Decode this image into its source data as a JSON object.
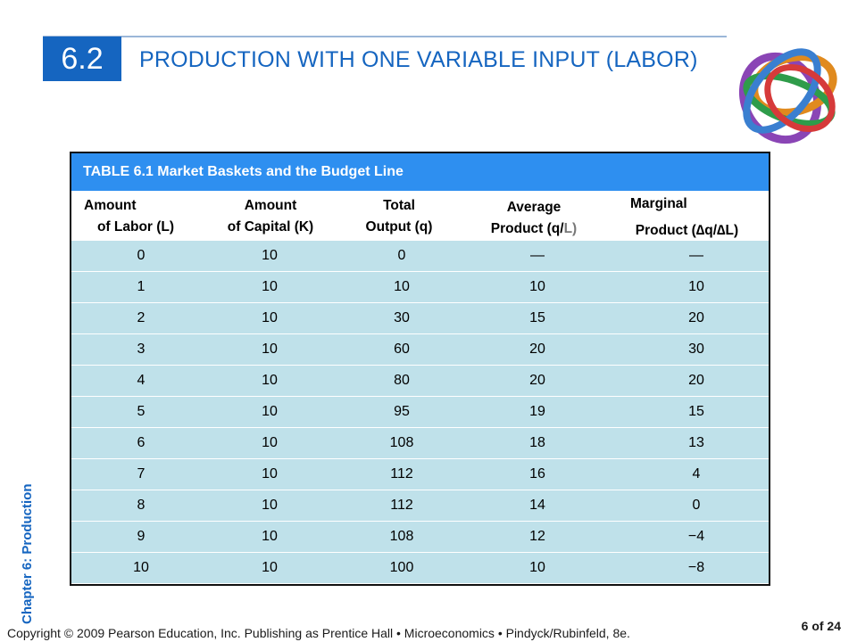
{
  "slide": {
    "section_number": "6.2",
    "title": "PRODUCTION WITH ONE VARIABLE INPUT (LABOR)",
    "side_label": "Chapter 6:  Production",
    "footer": "Copyright © 2009 Pearson Education, Inc. Publishing as Prentice Hall  •  Microeconomics  •  Pindyck/Rubinfeld, 8e.",
    "page": "6 of 24"
  },
  "table": {
    "title": "TABLE 6.1  Market Baskets and the Budget Line",
    "headers": [
      {
        "line1": "Amount",
        "line2": "of Labor (L)"
      },
      {
        "line1": "Amount",
        "line2": "of Capital (K)"
      },
      {
        "line1": "Total",
        "line2": "Output (q)"
      },
      {
        "line1": "Average",
        "line2_pre": "Product (q/",
        "line2_gray": "L)"
      },
      {
        "line1": "Marginal",
        "line2": "Product (∆q/∆L)"
      }
    ],
    "rows": [
      [
        "0",
        "10",
        "0",
        "—",
        "—"
      ],
      [
        "1",
        "10",
        "10",
        "10",
        "10"
      ],
      [
        "2",
        "10",
        "30",
        "15",
        "20"
      ],
      [
        "3",
        "10",
        "60",
        "20",
        "30"
      ],
      [
        "4",
        "10",
        "80",
        "20",
        "20"
      ],
      [
        "5",
        "10",
        "95",
        "19",
        "15"
      ],
      [
        "6",
        "10",
        "108",
        "18",
        "13"
      ],
      [
        "7",
        "10",
        "112",
        "16",
        "4"
      ],
      [
        "8",
        "10",
        "112",
        "14",
        "0"
      ],
      [
        "9",
        "10",
        "108",
        "12",
        "−4"
      ],
      [
        "10",
        "10",
        "100",
        "10",
        "−8"
      ]
    ]
  },
  "colors": {
    "accent": "#1565c0",
    "table_header": "#2e8ff0",
    "row_fill": "#bfe1ea"
  },
  "icons": {
    "logo": "interlocking-rings-logo"
  }
}
